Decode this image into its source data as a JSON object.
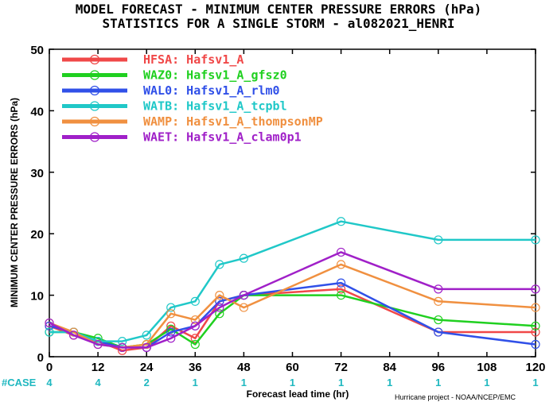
{
  "chart_data": {
    "type": "line",
    "title": "MODEL FORECAST - MINIMUM CENTER PRESSURE ERRORS (hPa)",
    "subtitle": "STATISTICS FOR A SINGLE STORM - al082021_HENRI",
    "xlabel": "Forecast lead time (hr)",
    "ylabel": "MINIMUM CENTER PRESSURE ERRORS (hPa)",
    "xlim": [
      0,
      120
    ],
    "ylim": [
      0,
      50
    ],
    "xticks": [
      0,
      12,
      24,
      36,
      48,
      60,
      72,
      84,
      96,
      108,
      120
    ],
    "yticks": [
      0,
      10,
      20,
      30,
      40,
      50
    ],
    "grid": false,
    "legend_position": "top-left",
    "case_label": "#CASE",
    "case_x": [
      0,
      12,
      24,
      36,
      48,
      60,
      72,
      84,
      96,
      108,
      120
    ],
    "case_counts": [
      "4",
      "4",
      "2",
      "1",
      "1",
      "1",
      "1",
      "1",
      "1",
      "1",
      "1"
    ],
    "series": [
      {
        "key": "HFSA:",
        "name": "Hafsv1_A",
        "color": "#f04848",
        "x": [
          0,
          6,
          12,
          18,
          24,
          30,
          36,
          42,
          48,
          72,
          96,
          120
        ],
        "values": [
          5,
          3.5,
          2.5,
          1,
          1.5,
          5,
          3,
          9,
          10,
          11,
          4,
          4
        ]
      },
      {
        "key": "WAZ0:",
        "name": "Hafsv1_A_gfsz0",
        "color": "#20d020",
        "x": [
          0,
          6,
          12,
          18,
          24,
          30,
          36,
          42,
          48,
          72,
          96,
          120
        ],
        "values": [
          4,
          4,
          3,
          1.5,
          2,
          4.5,
          2,
          7,
          10,
          10,
          6,
          5
        ]
      },
      {
        "key": "WAL0:",
        "name": "Hafsv1_A_rlm0",
        "color": "#3050e8",
        "x": [
          0,
          6,
          12,
          18,
          24,
          30,
          36,
          42,
          48,
          72,
          96,
          120
        ],
        "values": [
          5,
          4,
          2.5,
          1.5,
          1.5,
          4,
          5,
          9,
          10,
          12,
          4,
          2
        ]
      },
      {
        "key": "WATB:",
        "name": "Hafsv1_A_tcpbl",
        "color": "#20c8c8",
        "x": [
          0,
          6,
          12,
          18,
          24,
          30,
          36,
          42,
          48,
          72,
          96,
          120
        ],
        "values": [
          4,
          4,
          2.5,
          2.5,
          3.5,
          8,
          9,
          15,
          16,
          22,
          19,
          19
        ]
      },
      {
        "key": "WAMP:",
        "name": "Hafsv1_A_thompsonMP",
        "color": "#f09040",
        "x": [
          0,
          6,
          12,
          18,
          24,
          30,
          36,
          42,
          48,
          72,
          96,
          120
        ],
        "values": [
          5.5,
          4,
          2,
          1.5,
          2,
          7,
          6,
          10,
          8,
          15,
          9,
          8
        ]
      },
      {
        "key": "WAET:",
        "name": "Hafsv1_A_clam0p1",
        "color": "#a020c8",
        "x": [
          0,
          6,
          12,
          18,
          24,
          30,
          36,
          42,
          48,
          72,
          96,
          120
        ],
        "values": [
          5.5,
          3.5,
          2,
          1.5,
          1.5,
          3,
          5,
          8,
          10,
          17,
          11,
          11
        ]
      }
    ]
  },
  "footer": {
    "credit": "Hurricane project - NOAA/NCEP/EMC"
  }
}
